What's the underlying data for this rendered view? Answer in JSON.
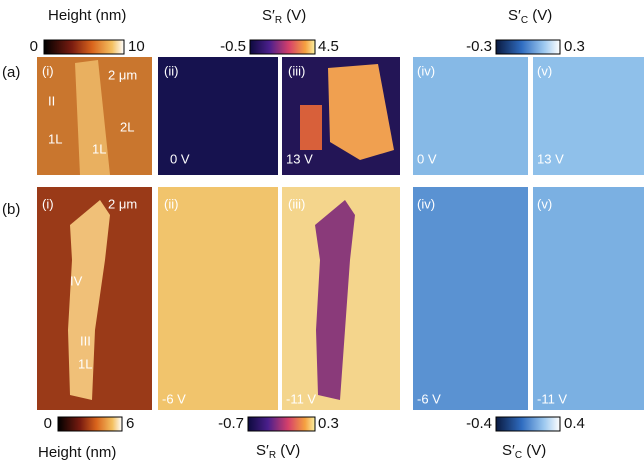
{
  "colorbars": {
    "top_height": {
      "label": "Height (nm)",
      "min": "0",
      "max": "10"
    },
    "top_sr": {
      "symbol": "S′",
      "sub": "R",
      "unit": " (V)",
      "min": "-0.5",
      "max": "4.5"
    },
    "top_sc": {
      "symbol": "S′",
      "sub": "C",
      "unit": " (V)",
      "min": "-0.3",
      "max": "0.3"
    },
    "bottom_height": {
      "label": "Height (nm)",
      "min": "0",
      "max": "6"
    },
    "bottom_sr": {
      "symbol": "S′",
      "sub": "R",
      "unit": " (V)",
      "min": "-0.7",
      "max": "0.3"
    },
    "bottom_sc": {
      "symbol": "S′",
      "sub": "C",
      "unit": " (V)",
      "min": "-0.4",
      "max": "0.4"
    }
  },
  "rows": [
    {
      "label": "(a)",
      "panels": [
        {
          "tag": "(i)",
          "scale": "2 μm",
          "notes": [
            "II",
            "2L",
            "1L",
            "1L"
          ]
        },
        {
          "tag": "(ii)",
          "voltage": "0 V"
        },
        {
          "tag": "(iii)",
          "voltage": "13 V"
        },
        {
          "tag": "(iv)",
          "voltage": "0 V"
        },
        {
          "tag": "(v)",
          "voltage": "13 V"
        }
      ]
    },
    {
      "label": "(b)",
      "panels": [
        {
          "tag": "(i)",
          "scale": "2 μm",
          "notes": [
            "IV",
            "III",
            "1L"
          ]
        },
        {
          "tag": "(ii)",
          "voltage": "-6 V"
        },
        {
          "tag": "(iii)",
          "voltage": "-11 V"
        },
        {
          "tag": "(iv)",
          "voltage": "-6 V"
        },
        {
          "tag": "(v)",
          "voltage": "-11 V"
        }
      ]
    }
  ]
}
